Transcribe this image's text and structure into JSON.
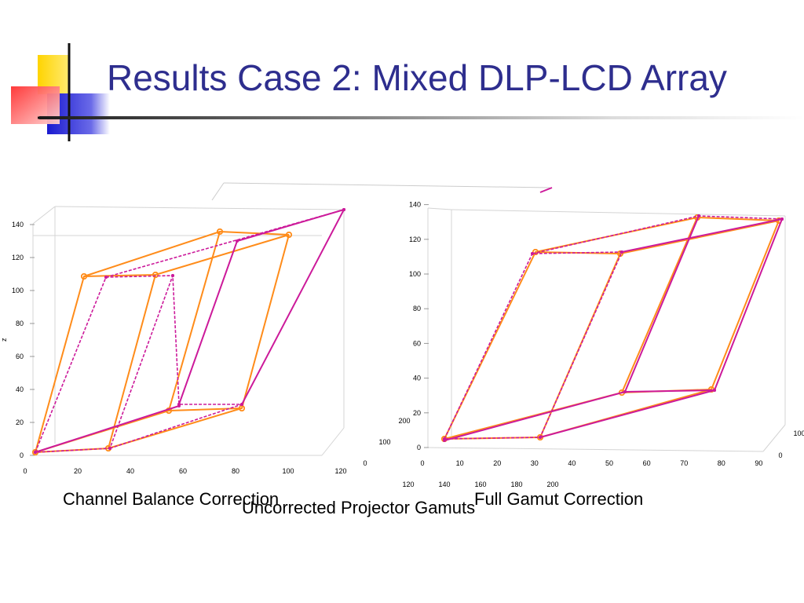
{
  "slide": {
    "title": "Results Case 2: Mixed DLP-LCD Array",
    "captions": {
      "left": "Channel Balance Correction",
      "middle": "Uncorrected Projector Gamuts",
      "right": "Full Gamut Correction"
    }
  },
  "colors": {
    "title": "#2e2e8e",
    "orange": "#ff8c1a",
    "magenta": "#cc1a9a"
  },
  "chart_data": [
    {
      "type": "line",
      "name": "Channel Balance Correction",
      "zlabel": "z",
      "z_ticks": [
        "0",
        "20",
        "40",
        "60",
        "80",
        "100",
        "120",
        "140"
      ],
      "x_ticks": [
        "0",
        "20",
        "40",
        "60",
        "80",
        "100",
        "120"
      ],
      "y_ticks": [
        "0",
        "100",
        "200"
      ],
      "zlim": [
        0,
        140
      ],
      "series": [
        {
          "style": "solid-circle",
          "color": "orange"
        },
        {
          "style": "dashed-star",
          "color": "magenta"
        },
        {
          "style": "solid",
          "color": "magenta"
        }
      ]
    },
    {
      "type": "line",
      "name": "Full Gamut Correction",
      "z_ticks": [
        "0",
        "20",
        "40",
        "60",
        "80",
        "100",
        "120",
        "140"
      ],
      "x_ticks": [
        "0",
        "10",
        "20",
        "30",
        "40",
        "50",
        "60",
        "70",
        "80",
        "90"
      ],
      "y_ticks": [
        "0",
        "100"
      ],
      "zlim": [
        0,
        140
      ],
      "series": [
        {
          "style": "solid-circle",
          "color": "orange"
        },
        {
          "style": "dashed-star",
          "color": "magenta"
        },
        {
          "style": "solid",
          "color": "magenta"
        }
      ]
    },
    {
      "type": "line",
      "name": "Uncorrected Projector Gamuts",
      "x_ticks_visible": [
        "120",
        "140",
        "160",
        "180",
        "200"
      ],
      "partial": true
    }
  ]
}
